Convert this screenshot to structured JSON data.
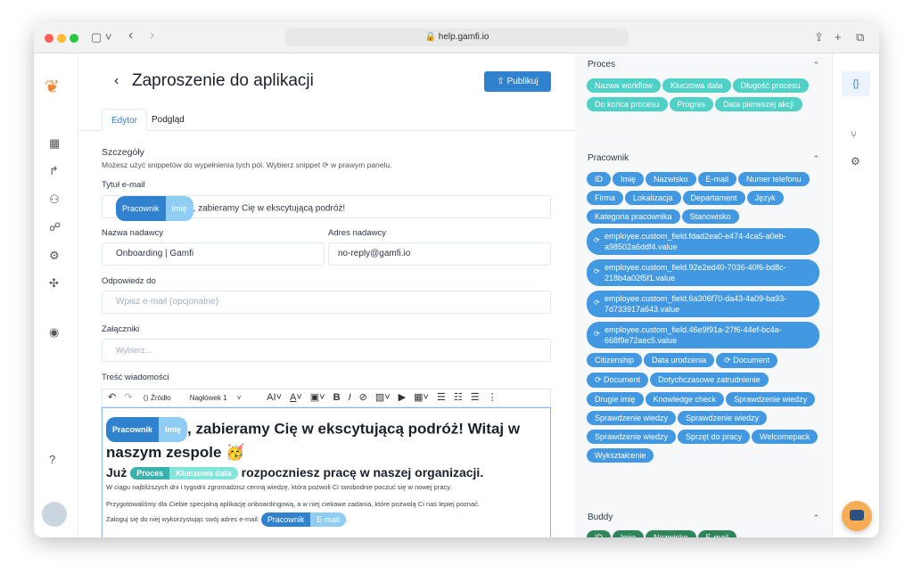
{
  "browser": {
    "url": "help.gamfi.io"
  },
  "header": {
    "title": "Zaproszenie do aplikacji",
    "publish": "Publikuj"
  },
  "tabs": [
    "Edytor",
    "Podgląd"
  ],
  "details": {
    "heading": "Szczegóły",
    "hint": "Możesz użyć snippetów do wypełnienia tych pól. Wybierz snippet ⟳ w prawym panelu."
  },
  "form": {
    "subject_label": "Tytuł e-mail",
    "subject_text": ", zabieramy Cię w ekscytującą podróż!",
    "sender_name_label": "Nazwa nadawcy",
    "sender_name": "Onboarding | Gamfi",
    "sender_addr_label": "Adres nadawcy",
    "sender_addr": "no-reply@gamfi.io",
    "reply_label": "Odpowiedz do",
    "reply_placeholder": "Wpisz e-mail (opcjonalne)",
    "attach_label": "Załączniki",
    "attach_placeholder": "Wybierz...",
    "body_label": "Treść wiadomości"
  },
  "toolbar": {
    "source": "Źródło",
    "heading": "Nagłówek 1"
  },
  "chips": {
    "employee": "Pracownik",
    "first": "Imię",
    "process": "Proces",
    "key_date": "Kluczowa data",
    "email": "E-mail"
  },
  "editor": {
    "h1": ", zabieramy Cię w ekscytującą podróż! Witaj w naszym zespole 🥳",
    "h2_pre": "Już",
    "h2_post": "rozpoczniesz pracę w naszej organizacji.",
    "p1": "W ciągu najbliższych dni i tygodni zgromadzisz cenną wiedzę, która pozwoli Ci swobodnie poczuć się w nowej pracy.",
    "p2": "Przygotowaliśmy dla Ciebie specjalną aplikację onboardingową, a w niej ciekawe zadania, które pozwolą Ci nas lepiej poznać.",
    "p3": "Zaloguj się do niej wykorzystując swój adres e-mail:",
    "p3_end": "."
  },
  "panel": {
    "proces": {
      "title": "Proces",
      "items": [
        "Nazwa workflow",
        "Kluczowa data",
        "Długość procesu",
        "Do końca procesu",
        "Progres",
        "Data pierwszej akcji"
      ]
    },
    "pracownik": {
      "title": "Pracownik",
      "items": [
        "ID",
        "Imię",
        "Nazwisko",
        "E-mail",
        "Numer telefonu",
        "Firma",
        "Lokalizacja",
        "Departament",
        "Język",
        "Kategoria pracownika",
        "Stanowisko"
      ],
      "custom": [
        "employee.custom_field.fdad2ea0-e474-4ca5-a0eb-a98502a6ddf4.value",
        "employee.custom_field.92e2ed40-7036-40f6-bd8c-218b4a02f5f1.value",
        "employee.custom_field.6a306f70-da43-4a09-ba93-7d733917a643.value",
        "employee.custom_field.46e9f91a-27f6-44ef-bc4a-668f9e72aec5.value"
      ],
      "more": [
        "Citizenship",
        "Data urodzenia",
        "⟳ Document",
        "⟳ Document",
        "Dotychczasowe zatrudnienie",
        "Drugie imię",
        "Knowledge check",
        "Sprawdzenie wiedzy",
        "Sprawdzenie wiedzy",
        "Sprawdzenie wiedzy",
        "Sprawdzenie wiedzy",
        "Sprzęt do pracy",
        "Welcomepack",
        "Wykształcenie"
      ]
    },
    "buddy": {
      "title": "Buddy",
      "items": [
        "ID",
        "Imię",
        "Nazwisko",
        "E-mail"
      ]
    }
  },
  "colors": {
    "accent": "#3182ce",
    "teal": "#4fd1c5",
    "chip_blue": "#4299e1",
    "buddy": "#2f855a"
  }
}
